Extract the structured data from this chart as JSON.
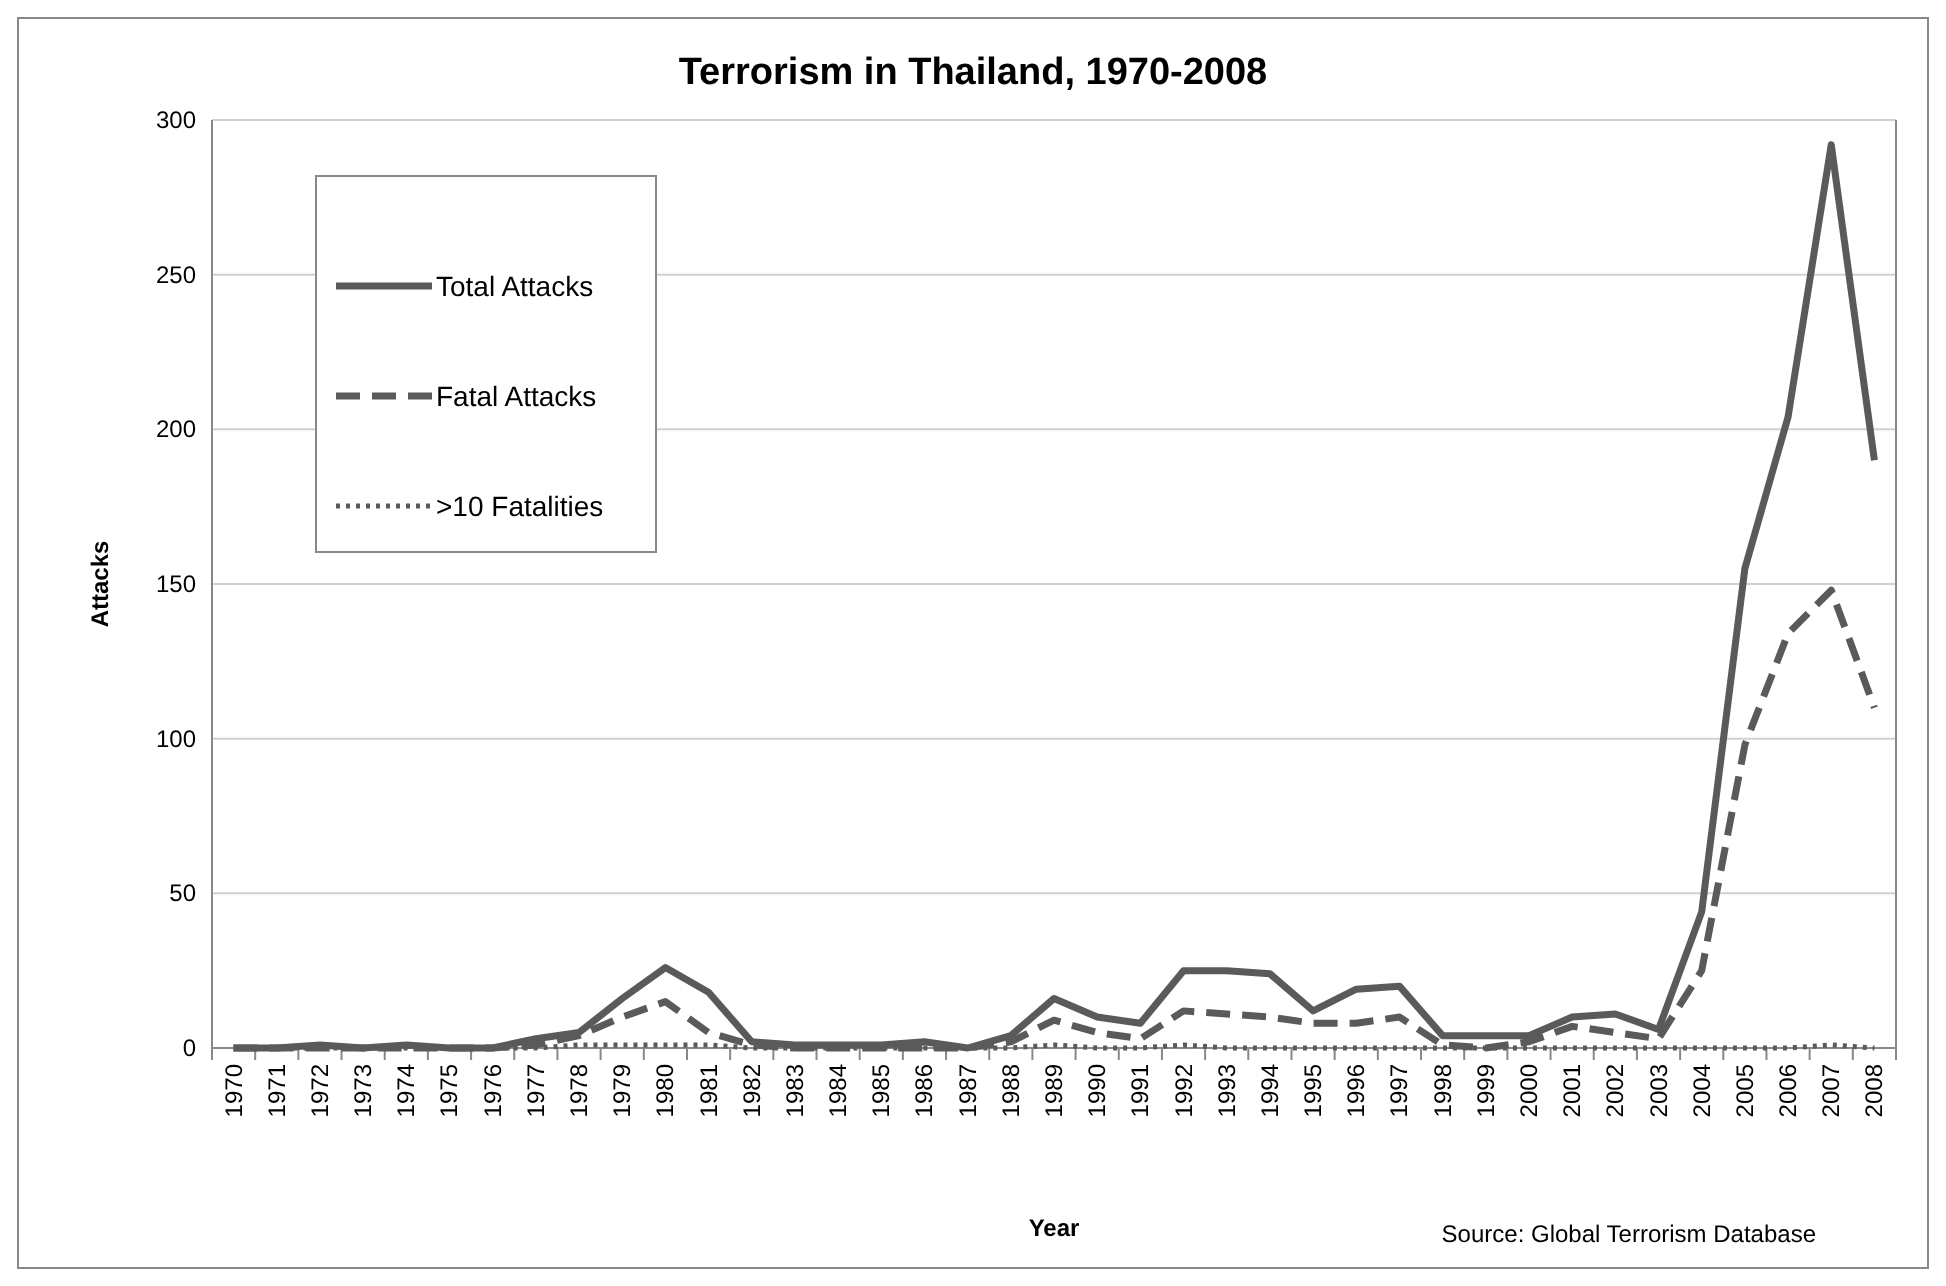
{
  "chart_data": {
    "type": "line",
    "title": "Terrorism in Thailand, 1970-2008",
    "xlabel": "Year",
    "ylabel": "Attacks",
    "categories": [
      "1970",
      "1971",
      "1972",
      "1973",
      "1974",
      "1975",
      "1976",
      "1977",
      "1978",
      "1979",
      "1980",
      "1981",
      "1982",
      "1983",
      "1984",
      "1985",
      "1986",
      "1987",
      "1988",
      "1989",
      "1990",
      "1991",
      "1992",
      "1993",
      "1994",
      "1995",
      "1996",
      "1997",
      "1998",
      "1999",
      "2000",
      "2001",
      "2002",
      "2003",
      "2004",
      "2005",
      "2006",
      "2007",
      "2008"
    ],
    "series": [
      {
        "name": "Total Attacks",
        "color": "#5a5a5a",
        "line_style": "solid",
        "values": [
          0,
          0,
          1,
          0,
          1,
          0,
          0,
          3,
          5,
          16,
          26,
          18,
          2,
          1,
          1,
          1,
          2,
          0,
          4,
          16,
          10,
          8,
          25,
          25,
          24,
          12,
          19,
          20,
          4,
          4,
          4,
          10,
          11,
          6,
          44,
          155,
          204,
          292,
          190
        ]
      },
      {
        "name": "Fatal Attacks",
        "color": "#5a5a5a",
        "line_style": "dashed",
        "values": [
          0,
          0,
          0,
          0,
          0,
          0,
          0,
          1,
          4,
          10,
          15,
          5,
          1,
          0,
          0,
          0,
          0,
          0,
          2,
          9,
          5,
          3,
          12,
          11,
          10,
          8,
          8,
          10,
          1,
          0,
          2,
          7,
          5,
          3,
          25,
          98,
          134,
          148,
          110
        ]
      },
      {
        "name": ">10 Fatalities",
        "color": "#5a5a5a",
        "line_style": "dotted",
        "values": [
          0,
          0,
          0,
          0,
          0,
          0,
          0,
          0,
          1,
          1,
          1,
          1,
          0,
          0,
          0,
          0,
          0,
          0,
          0,
          1,
          0,
          0,
          1,
          0,
          0,
          0,
          0,
          0,
          0,
          0,
          0,
          0,
          0,
          0,
          0,
          0,
          0,
          1,
          0
        ]
      }
    ],
    "ylim": [
      0,
      300
    ],
    "yticks": [
      0,
      50,
      100,
      150,
      200,
      250,
      300
    ],
    "grid": "y",
    "legend": "top left",
    "annotations": [
      "Source: Global Terrorism Database"
    ]
  }
}
